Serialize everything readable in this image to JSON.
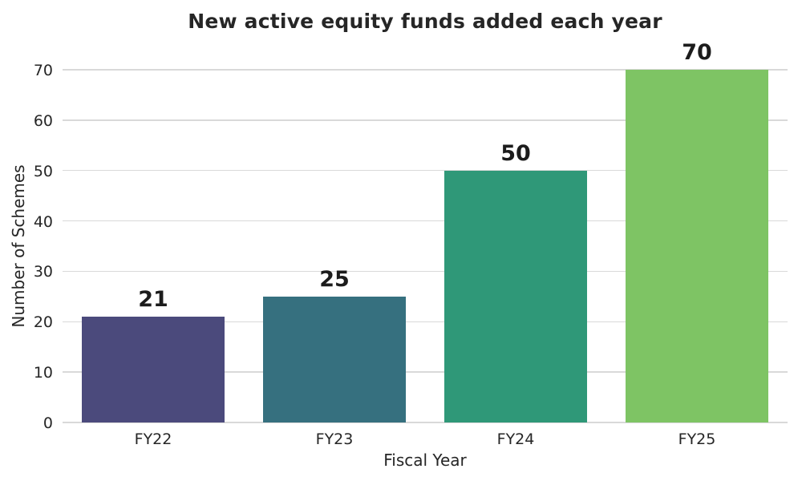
{
  "chart_data": {
    "type": "bar",
    "title": "New active equity funds added each year",
    "xlabel": "Fiscal Year",
    "ylabel": "Number of Schemes",
    "categories": [
      "FY22",
      "FY23",
      "FY24",
      "FY25"
    ],
    "values": [
      21,
      25,
      50,
      70
    ],
    "bar_labels": [
      "21",
      "25",
      "50",
      "70"
    ],
    "yticks": [
      0,
      10,
      20,
      30,
      40,
      50,
      60,
      70
    ],
    "ylim": [
      0,
      70
    ],
    "grid": "horizontal",
    "legend": "none",
    "bar_colors": [
      "#4b4a7c",
      "#36707f",
      "#2f9878",
      "#7ec464"
    ],
    "gridline_color": "#d9d9d9",
    "text_color": "#262626",
    "background_color": "#ffffff"
  }
}
